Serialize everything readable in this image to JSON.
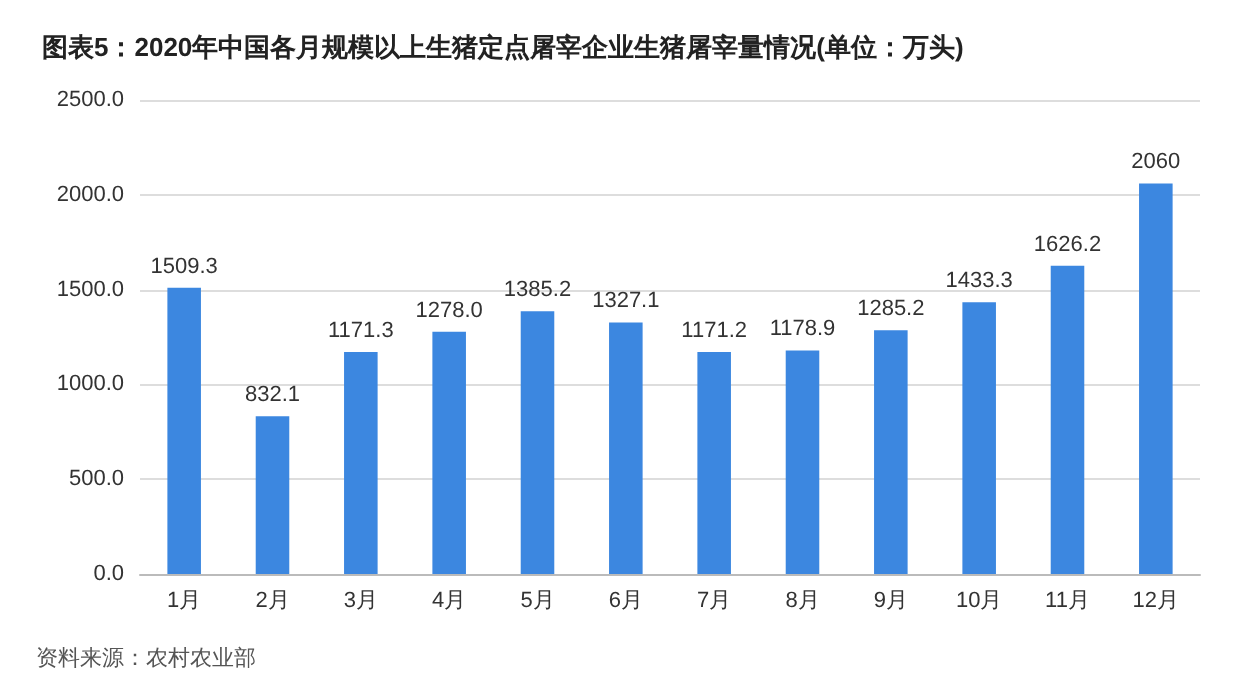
{
  "chart_data": {
    "type": "bar",
    "title": "图表5：2020年中国各月规模以上生猪定点屠宰企业生猪屠宰量情况(单位：万头)",
    "categories": [
      "1月",
      "2月",
      "3月",
      "4月",
      "5月",
      "6月",
      "7月",
      "8月",
      "9月",
      "10月",
      "11月",
      "12月"
    ],
    "values": [
      1509.3,
      832.1,
      1171.3,
      1278.0,
      1385.2,
      1327.1,
      1171.2,
      1178.9,
      1285.2,
      1433.3,
      1626.2,
      2060
    ],
    "value_labels": [
      "1509.3",
      "832.1",
      "1171.3",
      "1278.0",
      "1385.2",
      "1327.1",
      "1171.2",
      "1178.9",
      "1285.2",
      "1433.3",
      "1626.2",
      "2060"
    ],
    "color": "#3c87e0",
    "ylim": [
      0,
      2500
    ],
    "yticks": [
      {
        "value": 0,
        "label": "0.0"
      },
      {
        "value": 500,
        "label": "500.0"
      },
      {
        "value": 1000,
        "label": "1000.0"
      },
      {
        "value": 1500,
        "label": "1500.0"
      },
      {
        "value": 2000,
        "label": "2000.0"
      },
      {
        "value": 2500,
        "label": "2500.0"
      }
    ],
    "grid": "y",
    "annotations": [
      "资料来源：农村农业部"
    ]
  }
}
